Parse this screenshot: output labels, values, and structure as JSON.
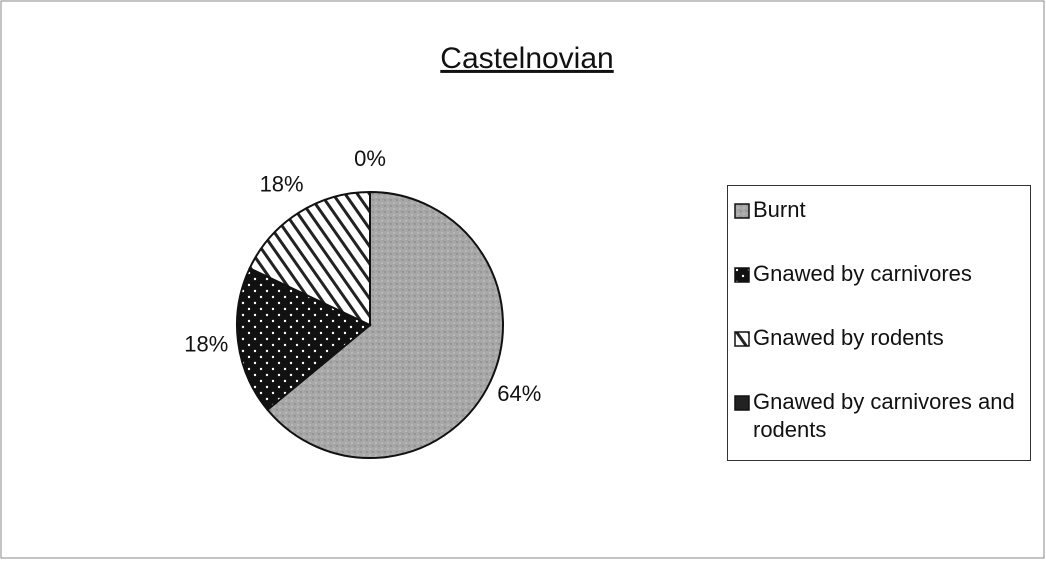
{
  "chart_data": {
    "type": "pie",
    "title": "Castelnovian",
    "categories": [
      "Burnt",
      "Gnawed by carnivores",
      "Gnawed by rodents",
      "Gnawed by carnivores and rodents"
    ],
    "values": [
      64,
      18,
      18,
      0
    ],
    "value_labels": [
      "64%",
      "18%",
      "18%",
      "0%"
    ],
    "colors": [
      "#a8a8a8",
      "#111111",
      "#ffffff",
      "#222222"
    ],
    "legend": "right"
  }
}
